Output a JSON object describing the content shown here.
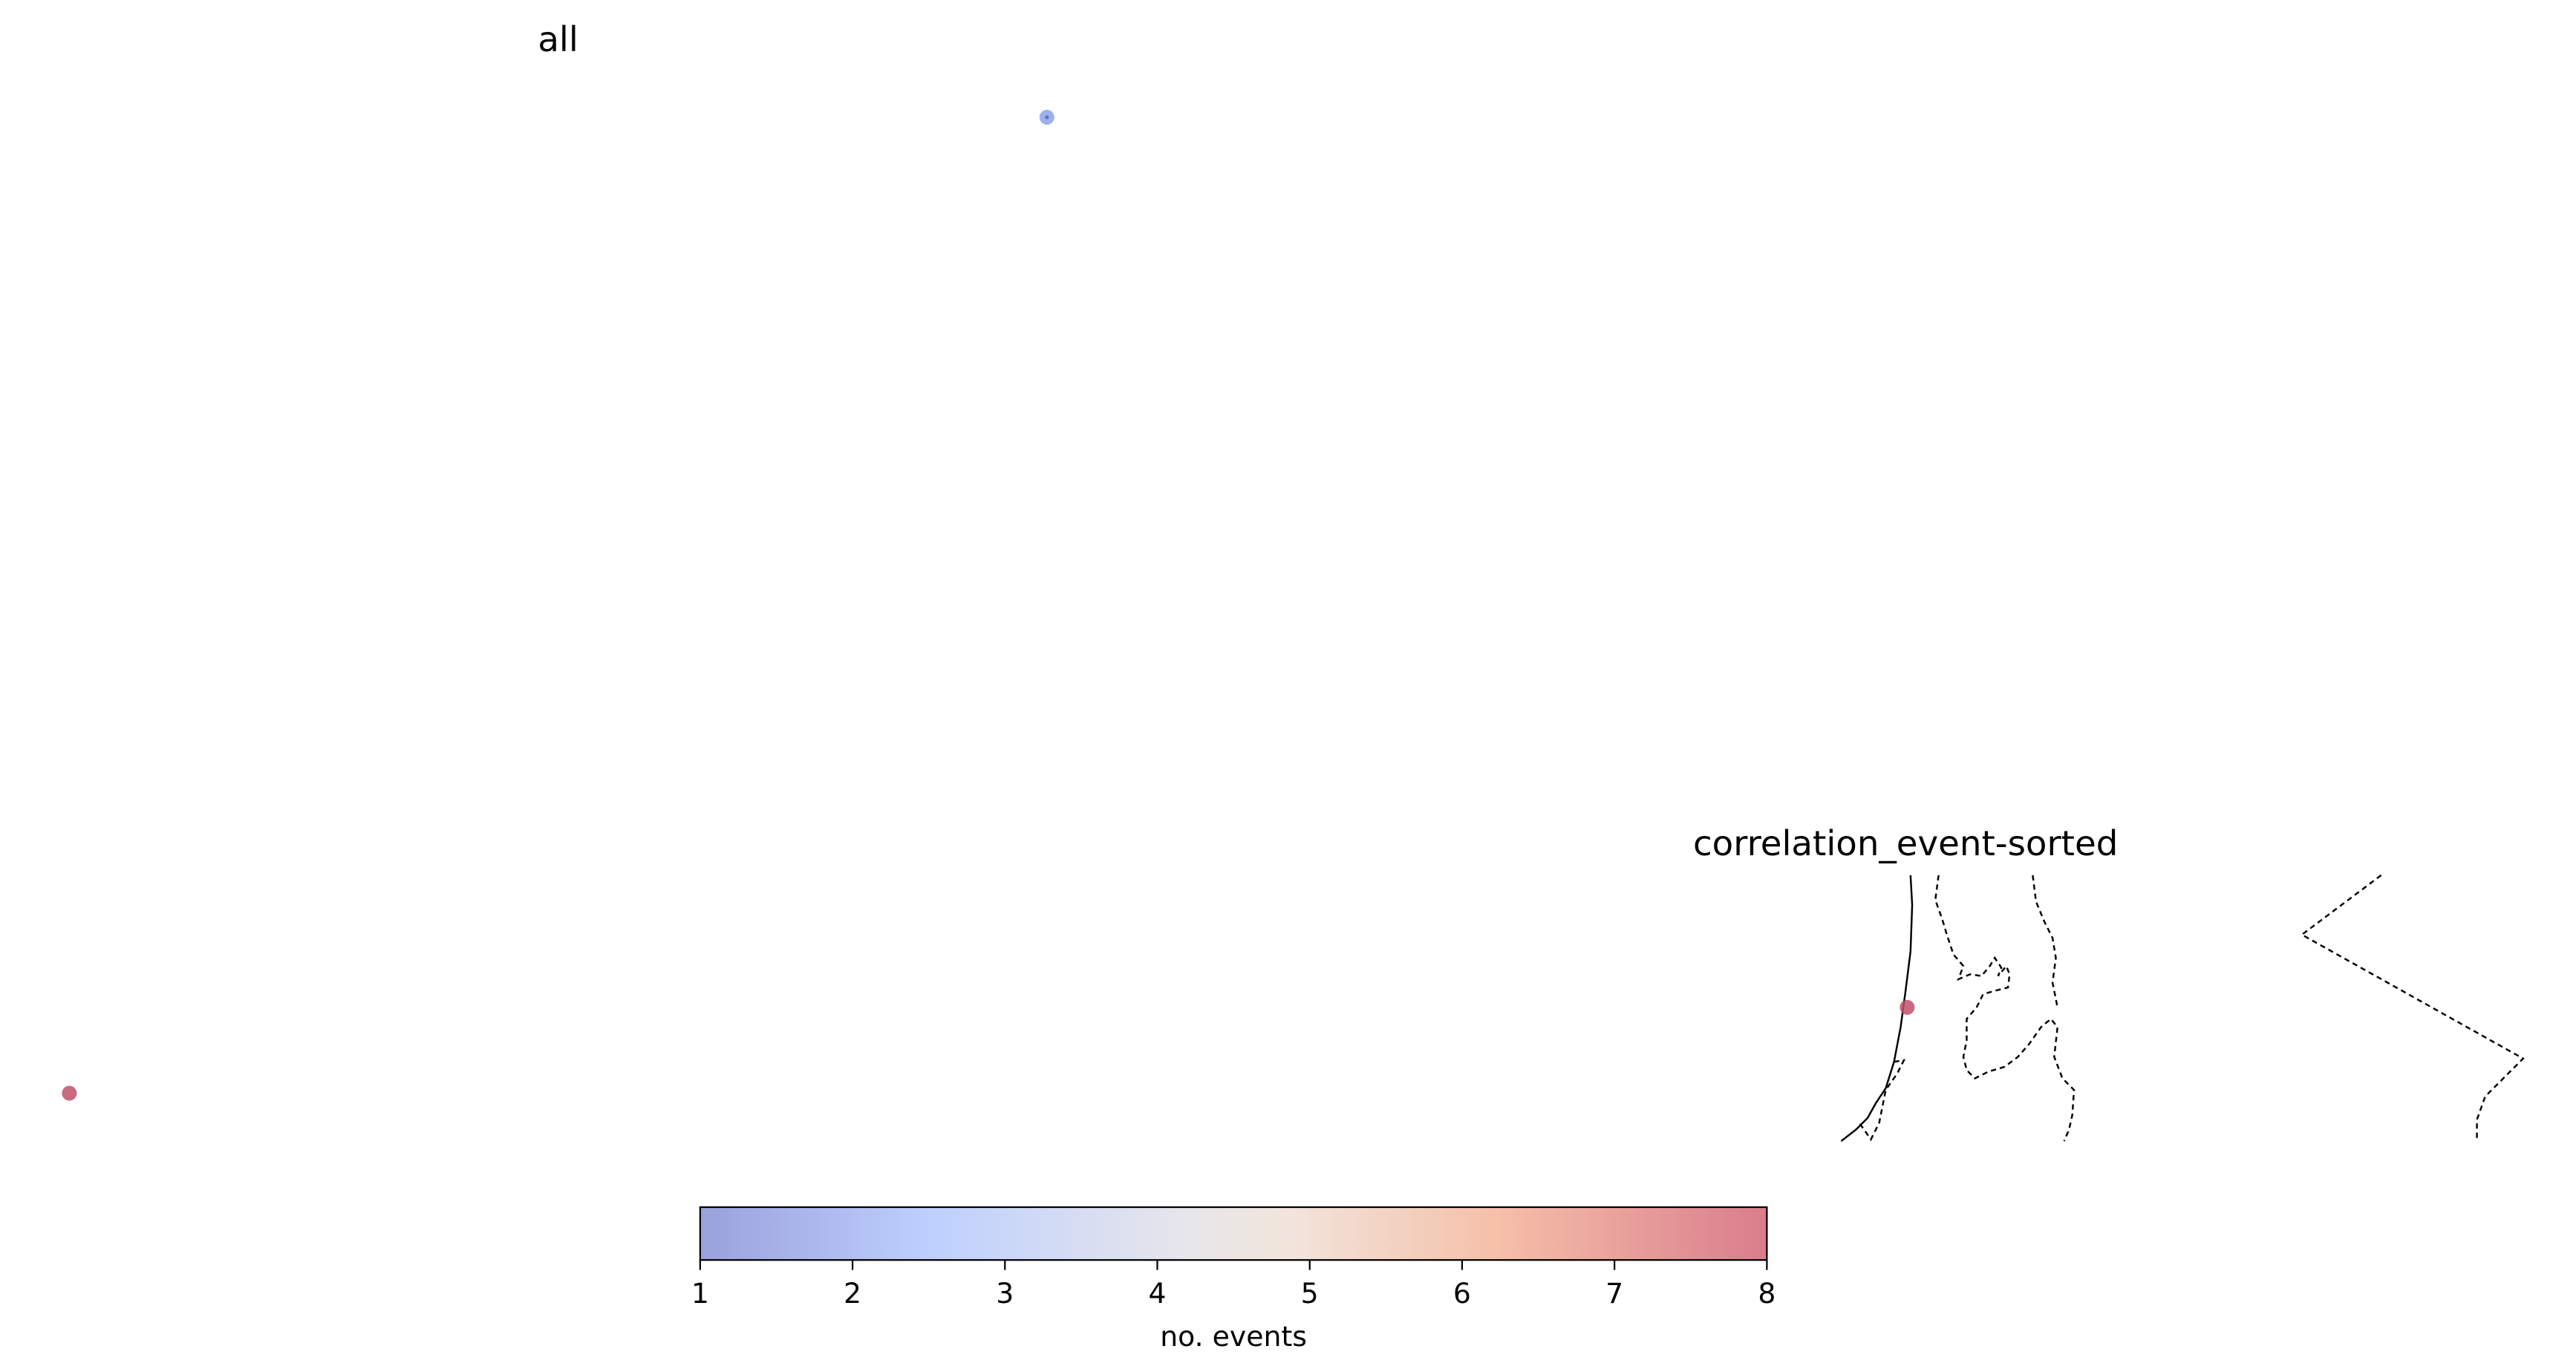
{
  "panels": [
    {
      "title": "all",
      "markers": [
        {
          "value": 2
        },
        {
          "value": 8
        }
      ]
    },
    {
      "title": "correlation_event-sorted",
      "markers": [
        {
          "value": 8
        }
      ]
    }
  ],
  "colorbar": {
    "label": "no. events",
    "min": 1,
    "max": 8,
    "ticks": [
      "1",
      "2",
      "3",
      "4",
      "5",
      "6",
      "7",
      "8"
    ],
    "colormap": "coolwarm",
    "colors": [
      "#9aa1dc",
      "#bfd0ff",
      "#ececec",
      "#f7c2aa",
      "#d97d8c"
    ]
  },
  "map_style": {
    "coastline": "solid",
    "borders": "dashed",
    "line_color": "#000000",
    "marker_alpha": 0.6
  }
}
